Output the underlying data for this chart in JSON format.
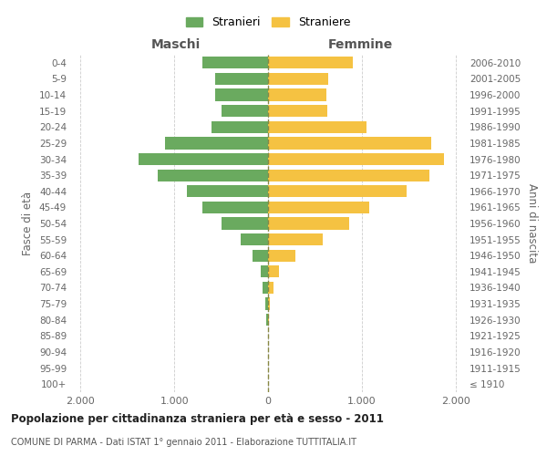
{
  "age_groups": [
    "100+",
    "95-99",
    "90-94",
    "85-89",
    "80-84",
    "75-79",
    "70-74",
    "65-69",
    "60-64",
    "55-59",
    "50-54",
    "45-49",
    "40-44",
    "35-39",
    "30-34",
    "25-29",
    "20-24",
    "15-19",
    "10-14",
    "5-9",
    "0-4"
  ],
  "birth_years": [
    "≤ 1910",
    "1911-1915",
    "1916-1920",
    "1921-1925",
    "1926-1930",
    "1931-1935",
    "1936-1940",
    "1941-1945",
    "1946-1950",
    "1951-1955",
    "1956-1960",
    "1961-1965",
    "1966-1970",
    "1971-1975",
    "1976-1980",
    "1981-1985",
    "1986-1990",
    "1991-1995",
    "1996-2000",
    "2001-2005",
    "2006-2010"
  ],
  "maschi": [
    0,
    0,
    0,
    0,
    15,
    30,
    55,
    80,
    170,
    290,
    500,
    700,
    870,
    1180,
    1380,
    1100,
    600,
    500,
    560,
    560,
    700
  ],
  "femmine": [
    0,
    0,
    0,
    0,
    10,
    20,
    60,
    120,
    290,
    580,
    870,
    1080,
    1480,
    1720,
    1880,
    1740,
    1050,
    630,
    620,
    640,
    900
  ],
  "male_color": "#6aaa5f",
  "female_color": "#f5c242",
  "dashed_line_color": "#888844",
  "background_color": "#ffffff",
  "grid_color": "#cccccc",
  "title": "Popolazione per cittadinanza straniera per età e sesso - 2011",
  "subtitle": "COMUNE DI PARMA - Dati ISTAT 1° gennaio 2011 - Elaborazione TUTTITALIA.IT",
  "ylabel_left": "Fasce di età",
  "ylabel_right": "Anni di nascita",
  "label_maschi": "Maschi",
  "label_femmine": "Femmine",
  "legend_male": "Stranieri",
  "legend_female": "Straniere",
  "xlim": 2100
}
